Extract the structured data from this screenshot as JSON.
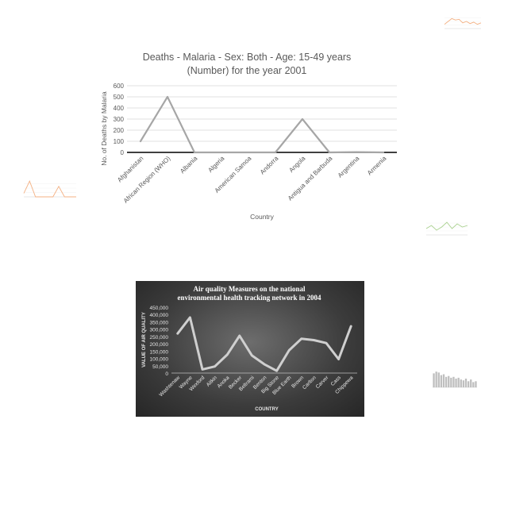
{
  "chart_data": [
    {
      "type": "line",
      "title": "Deaths - Malaria - Sex: Both - Age: 15-49 years (Number) for the year 2001",
      "title_lines": [
        "Deaths - Malaria - Sex: Both - Age: 15-49 years",
        "(Number) for the year 2001"
      ],
      "xlabel": "Country",
      "ylabel": "No. of Deaths by Malaria",
      "categories": [
        "Afghanistan",
        "African Region (WHO)",
        "Albania",
        "Algeria",
        "American Samoa",
        "Andorra",
        "Angola",
        "Antigua and Barbuda",
        "Argentina",
        "Armenia"
      ],
      "values": [
        100,
        500,
        0,
        0,
        0,
        0,
        300,
        0,
        3,
        0
      ],
      "yticks": [
        "0",
        "100",
        "200",
        "300",
        "400",
        "500",
        "600"
      ],
      "ylim": [
        0,
        600
      ],
      "grid": true,
      "line_color": "#a6a6a6"
    },
    {
      "type": "line",
      "title": "Air quality Measures on the national environmental health tracking network in 2004",
      "title_lines": [
        "Air quality Measures on the national",
        "environmental health tracking network in 2004"
      ],
      "xlabel": "COUNTRY",
      "ylabel": "VALUE OF AIR QUALITY",
      "categories": [
        "Washtenaw",
        "Wayne",
        "Wexford",
        "Aitkin",
        "Anoka",
        "Becker",
        "Beltrami",
        "Benton",
        "Big Stone",
        "Blue Earth",
        "Brown",
        "Carlton",
        "Carver",
        "Cass",
        "Chippewa"
      ],
      "values": [
        270000,
        380000,
        25000,
        45000,
        125000,
        255000,
        120000,
        60000,
        15000,
        155000,
        235000,
        225000,
        205000,
        95000,
        320000
      ],
      "yticks": [
        "0",
        "50,000",
        "100,000",
        "150,000",
        "200,000",
        "250,000",
        "300,000",
        "350,000",
        "400,000",
        "450,000"
      ],
      "ylim": [
        0,
        450000
      ],
      "grid": false,
      "line_color": "#cfcfcf",
      "background": "#3a3a3a"
    }
  ],
  "thumbnails": [
    {
      "id": "thumb-top-right",
      "line_color": "#f4b183"
    },
    {
      "id": "thumb-left",
      "line_color": "#f4b183"
    },
    {
      "id": "thumb-right-mid",
      "line_color": "#a9d18e"
    },
    {
      "id": "thumb-right-bars",
      "bar_color": "#bfbfbf"
    }
  ]
}
